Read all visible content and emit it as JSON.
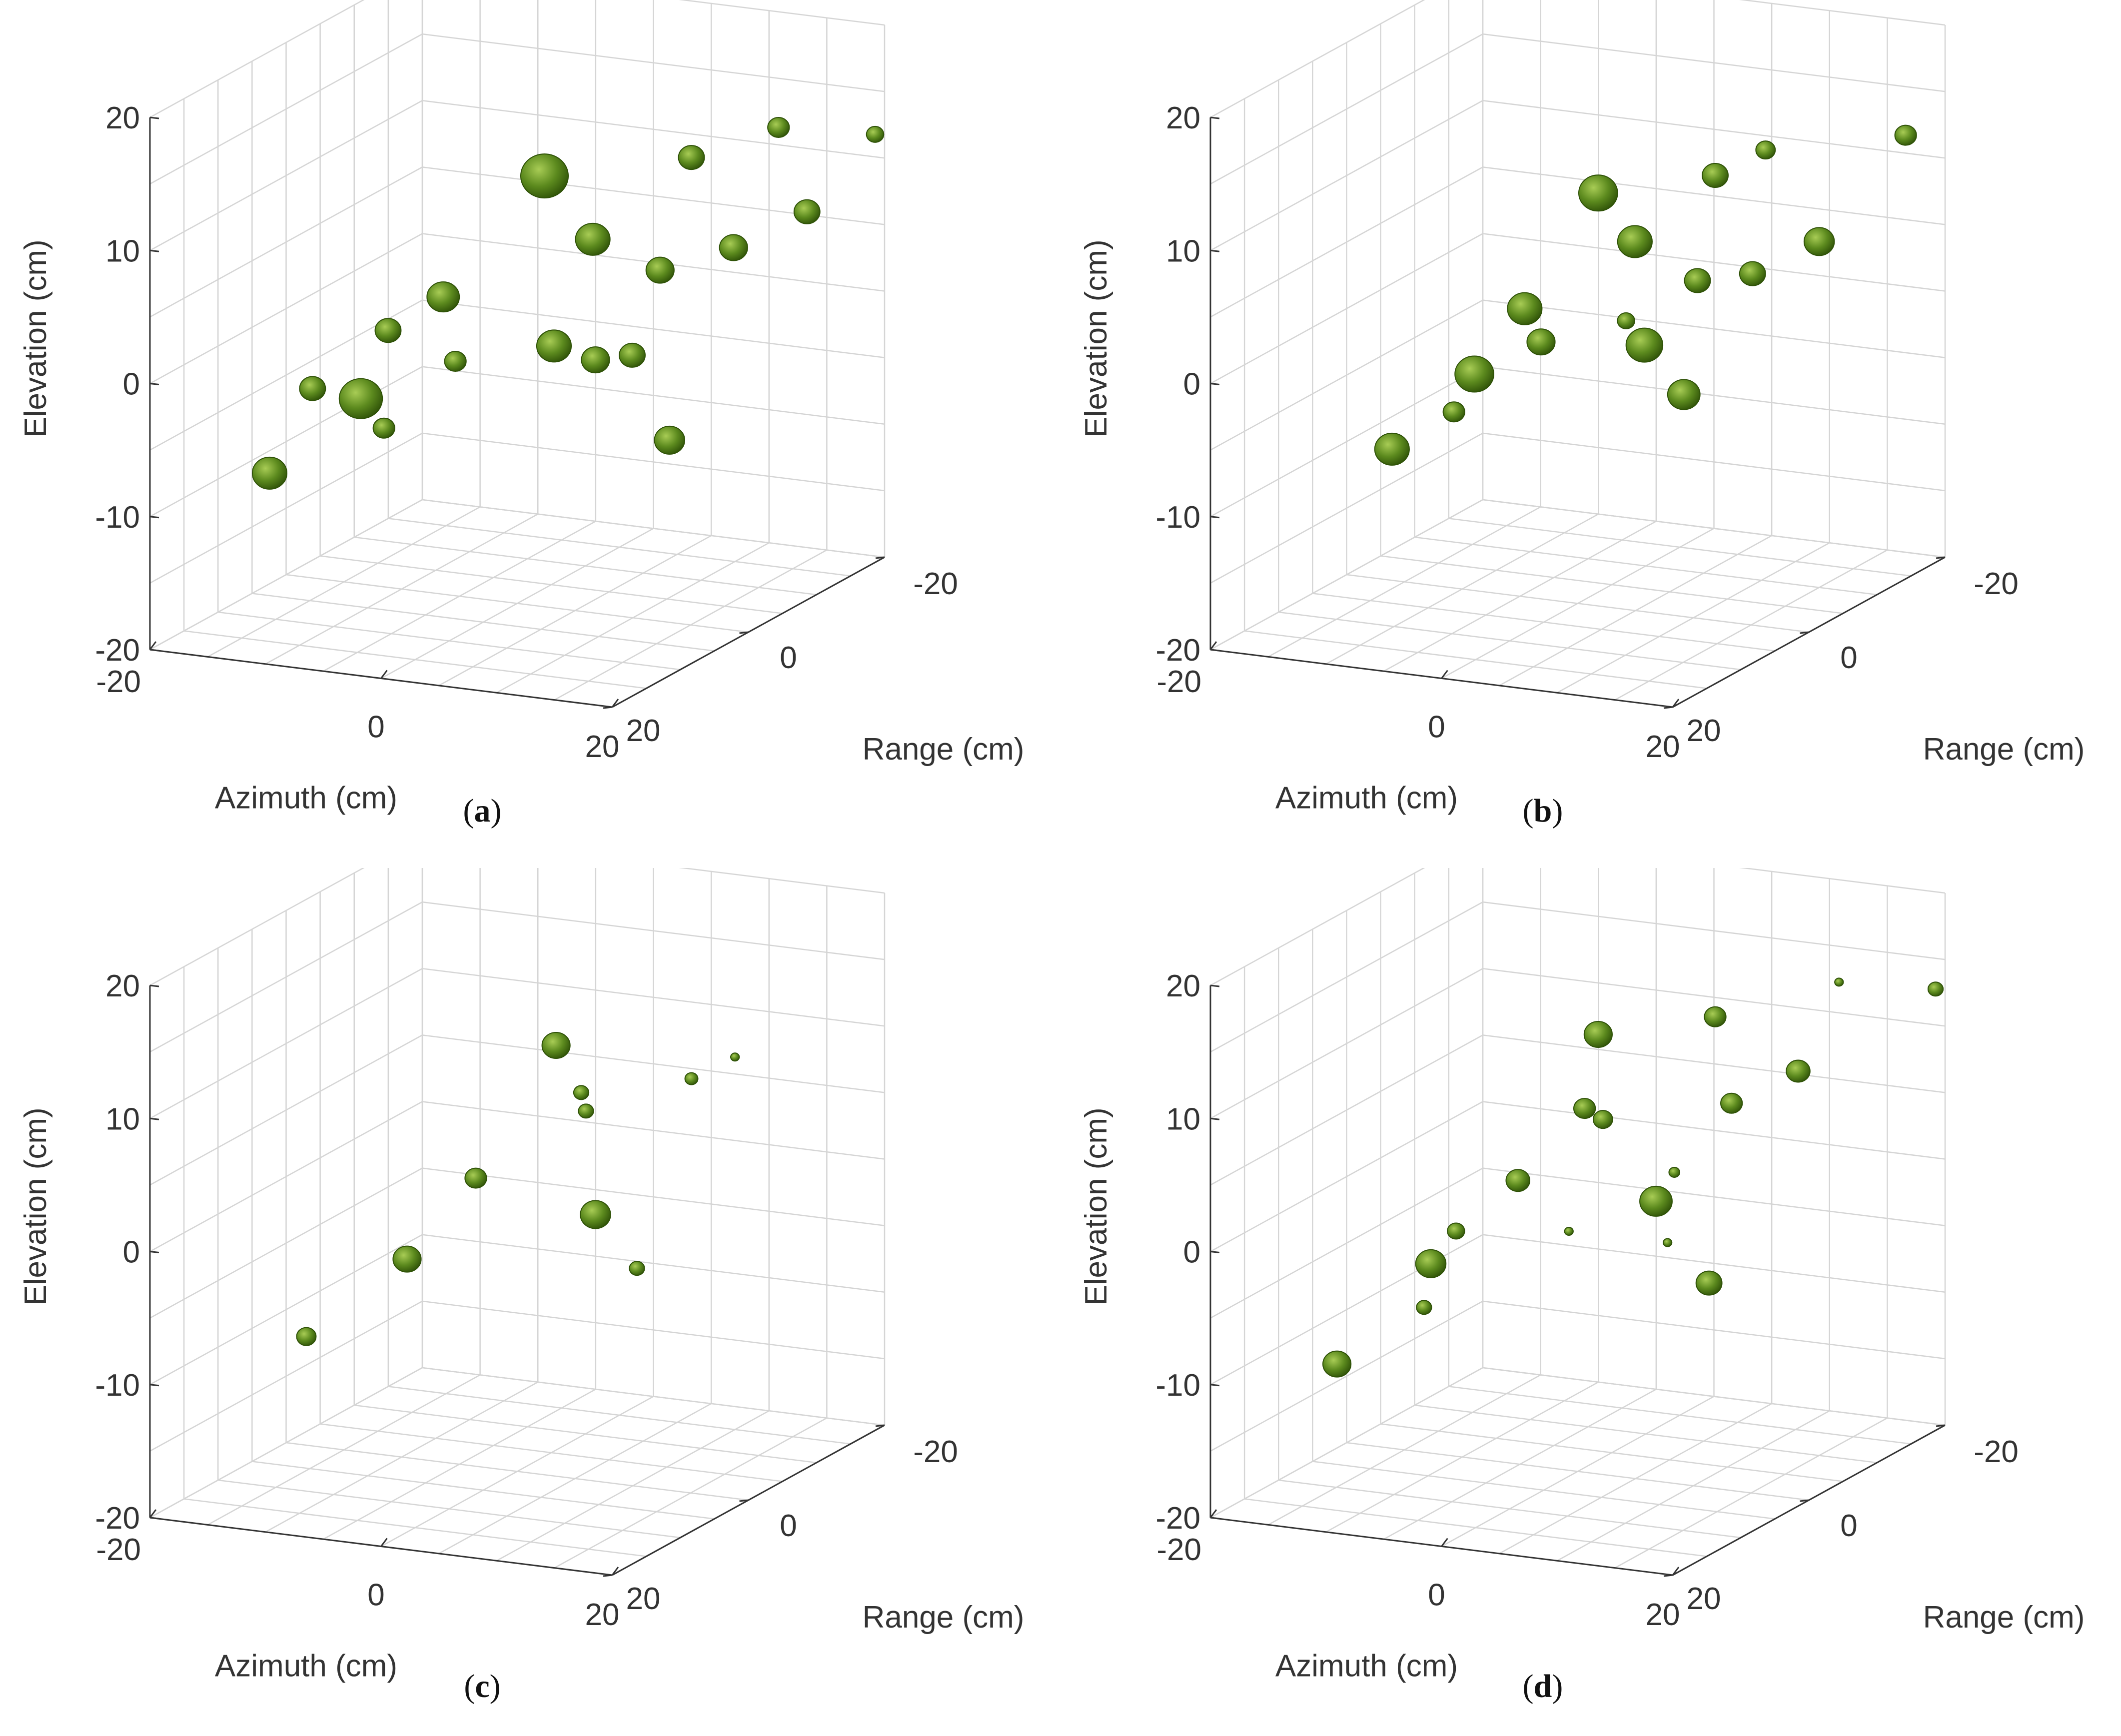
{
  "colors": {
    "blob": "#5c8a1e",
    "blob_dark": "#2f5208",
    "blob_light": "#a8cc55",
    "axis": "#333333",
    "grid": "#d5d5d5",
    "text": "#333333"
  },
  "chart_data": [
    {
      "type": "scatter3d",
      "panel": "a",
      "caption_label": "a",
      "xlabel": "Azimuth (cm)",
      "ylabel": "Range (cm)",
      "zlabel": "Elevation (cm)",
      "xlim": [
        -20,
        20
      ],
      "ylim": [
        -20,
        20
      ],
      "zlim": [
        -20,
        20
      ],
      "x_ticks": [
        "-20",
        "0",
        "20"
      ],
      "y_ticks": [
        "20",
        "0",
        "-20"
      ],
      "z_ticks": [
        "-20",
        "-10",
        "0",
        "10",
        "20"
      ],
      "grid": true,
      "points": [
        {
          "x": 0,
          "y": -4,
          "z": 11,
          "r": 2.2
        },
        {
          "x": 3,
          "y": -6,
          "z": 6,
          "r": 1.6
        },
        {
          "x": 8,
          "y": -12,
          "z": 11,
          "r": 1.2
        },
        {
          "x": 12,
          "y": -18,
          "z": 12,
          "r": 1.0
        },
        {
          "x": 18,
          "y": -22,
          "z": 11,
          "r": 0.8
        },
        {
          "x": 10,
          "y": -4,
          "z": 5,
          "r": 1.3
        },
        {
          "x": 14,
          "y": -8,
          "z": 6,
          "r": 1.3
        },
        {
          "x": 18,
          "y": -12,
          "z": 8,
          "r": 1.2
        },
        {
          "x": -7,
          "y": -1,
          "z": 2,
          "r": 1.5
        },
        {
          "x": -10,
          "y": 2,
          "z": 0,
          "r": 1.2
        },
        {
          "x": -10,
          "y": 6,
          "z": -4,
          "r": 2.0
        },
        {
          "x": -13,
          "y": 8,
          "z": -3,
          "r": 1.2
        },
        {
          "x": -8,
          "y": 6,
          "z": -6,
          "r": 1.0
        },
        {
          "x": -12,
          "y": 16,
          "z": -7,
          "r": 1.6
        },
        {
          "x": 2,
          "y": -2,
          "z": -1,
          "r": 1.6
        },
        {
          "x": 5,
          "y": -3,
          "z": -2,
          "r": 1.3
        },
        {
          "x": 7,
          "y": -5,
          "z": -2,
          "r": 1.2
        },
        {
          "x": 12,
          "y": -2,
          "z": -7,
          "r": 1.4
        },
        {
          "x": -3,
          "y": 4,
          "z": -1,
          "r": 1.0
        }
      ]
    },
    {
      "type": "scatter3d",
      "panel": "b",
      "caption_label": "b",
      "xlabel": "Azimuth (cm)",
      "ylabel": "Range (cm)",
      "zlabel": "Elevation (cm)",
      "xlim": [
        -20,
        20
      ],
      "ylim": [
        -20,
        20
      ],
      "zlim": [
        -20,
        20
      ],
      "x_ticks": [
        "-20",
        "0",
        "20"
      ],
      "y_ticks": [
        "20",
        "0",
        "-20"
      ],
      "z_ticks": [
        "-20",
        "-10",
        "0",
        "10",
        "20"
      ],
      "grid": true,
      "points": [
        {
          "x": 0,
          "y": -3,
          "z": 10,
          "r": 1.8
        },
        {
          "x": 2,
          "y": -5,
          "z": 6,
          "r": 1.6
        },
        {
          "x": 6,
          "y": -10,
          "z": 10,
          "r": 1.2
        },
        {
          "x": 8,
          "y": -14,
          "z": 11,
          "r": 0.9
        },
        {
          "x": 16,
          "y": -21,
          "z": 11,
          "r": 1.0
        },
        {
          "x": 8,
          "y": -4,
          "z": 4,
          "r": 1.2
        },
        {
          "x": 11,
          "y": -7,
          "z": 4,
          "r": 1.2
        },
        {
          "x": 15,
          "y": -10,
          "z": 6,
          "r": 1.4
        },
        {
          "x": -4,
          "y": 1,
          "z": 2,
          "r": 1.6
        },
        {
          "x": -6,
          "y": 5,
          "z": -2,
          "r": 1.8
        },
        {
          "x": -2,
          "y": 2,
          "z": 0,
          "r": 1.3
        },
        {
          "x": -6,
          "y": 8,
          "z": -4,
          "r": 1.0
        },
        {
          "x": -9,
          "y": 12,
          "z": -6,
          "r": 1.6
        },
        {
          "x": 3,
          "y": -2,
          "z": 1,
          "r": 0.8
        },
        {
          "x": 4,
          "y": -3,
          "z": -1,
          "r": 1.7
        },
        {
          "x": 8,
          "y": -2,
          "z": -4,
          "r": 1.5
        }
      ]
    },
    {
      "type": "scatter3d",
      "panel": "c",
      "caption_label": "c",
      "xlabel": "Azimuth (cm)",
      "ylabel": "Range (cm)",
      "zlabel": "Elevation (cm)",
      "xlim": [
        -20,
        20
      ],
      "ylim": [
        -20,
        20
      ],
      "zlim": [
        -20,
        20
      ],
      "x_ticks": [
        "-20",
        "0",
        "20"
      ],
      "y_ticks": [
        "20",
        "0",
        "-20"
      ],
      "z_ticks": [
        "-20",
        "-10",
        "0",
        "10",
        "20"
      ],
      "grid": true,
      "points": [
        {
          "x": 1,
          "y": -4,
          "z": 11,
          "r": 1.3
        },
        {
          "x": 2,
          "y": -6,
          "z": 7,
          "r": 0.7
        },
        {
          "x": 3,
          "y": -5,
          "z": 6,
          "r": 0.7
        },
        {
          "x": 8,
          "y": -12,
          "z": 7,
          "r": 0.6
        },
        {
          "x": 10,
          "y": -15,
          "z": 8,
          "r": 0.4
        },
        {
          "x": -3,
          "y": 1,
          "z": 2,
          "r": 1.0
        },
        {
          "x": -6,
          "y": 6,
          "z": -3,
          "r": 1.3
        },
        {
          "x": -10,
          "y": 14,
          "z": -7,
          "r": 0.9
        },
        {
          "x": 5,
          "y": -3,
          "z": -1,
          "r": 1.4
        },
        {
          "x": 8,
          "y": -4,
          "z": -5,
          "r": 0.7
        }
      ]
    },
    {
      "type": "scatter3d",
      "panel": "d",
      "caption_label": "d",
      "xlabel": "Azimuth (cm)",
      "ylabel": "Range (cm)",
      "zlabel": "Elevation (cm)",
      "xlim": [
        -20,
        20
      ],
      "ylim": [
        -20,
        20
      ],
      "zlim": [
        -20,
        20
      ],
      "x_ticks": [
        "-20",
        "0",
        "20"
      ],
      "y_ticks": [
        "20",
        "0",
        "-20"
      ],
      "z_ticks": [
        "-20",
        "-10",
        "0",
        "10",
        "20"
      ],
      "grid": true,
      "points": [
        {
          "x": 0,
          "y": -3,
          "z": 12,
          "r": 1.3
        },
        {
          "x": 6,
          "y": -10,
          "z": 12,
          "r": 1.0
        },
        {
          "x": 12,
          "y": -18,
          "z": 13,
          "r": 0.4
        },
        {
          "x": 18,
          "y": -22,
          "z": 12,
          "r": 0.7
        },
        {
          "x": 0,
          "y": -1,
          "z": 7,
          "r": 1.0
        },
        {
          "x": 1,
          "y": -2,
          "z": 6,
          "r": 0.9
        },
        {
          "x": 8,
          "y": -9,
          "z": 6,
          "r": 1.0
        },
        {
          "x": 12,
          "y": -12,
          "z": 8,
          "r": 1.1
        },
        {
          "x": -4,
          "y": 2,
          "z": 2,
          "r": 1.1
        },
        {
          "x": -7,
          "y": 6,
          "z": -1,
          "r": 0.8
        },
        {
          "x": -8,
          "y": 8,
          "z": -3,
          "r": 1.4
        },
        {
          "x": -8,
          "y": 9,
          "z": -6,
          "r": 0.7
        },
        {
          "x": -12,
          "y": 15,
          "z": -9,
          "r": 1.3
        },
        {
          "x": 1,
          "y": 3,
          "z": -1,
          "r": 0.4
        },
        {
          "x": 5,
          "y": -3,
          "z": 0,
          "r": 1.5
        },
        {
          "x": 6,
          "y": -4,
          "z": 2,
          "r": 0.5
        },
        {
          "x": 6,
          "y": -3,
          "z": -3,
          "r": 0.4
        },
        {
          "x": 9,
          "y": -4,
          "z": -6,
          "r": 1.2
        }
      ]
    }
  ]
}
